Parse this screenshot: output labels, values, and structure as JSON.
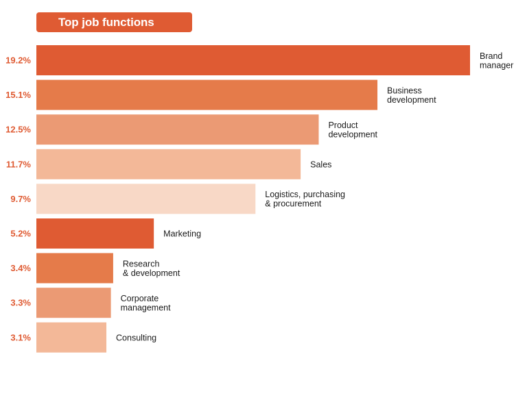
{
  "chart_data": {
    "type": "bar",
    "orientation": "horizontal",
    "title": "Top job functions",
    "categories": [
      "Brand manager",
      "Business development",
      "Product development",
      "Sales",
      "Logistics, purchasing & procurement",
      "Marketing",
      "Research & development",
      "Corporate management",
      "Consulting"
    ],
    "category_label_lines": [
      [
        "Brand",
        "manager"
      ],
      [
        "Business",
        "development"
      ],
      [
        "Product",
        "development"
      ],
      [
        "Sales"
      ],
      [
        "Logistics, purchasing",
        "& procurement"
      ],
      [
        "Marketing"
      ],
      [
        "Research",
        "& development"
      ],
      [
        "Corporate",
        "management"
      ],
      [
        "Consulting"
      ]
    ],
    "values": [
      19.2,
      15.1,
      12.5,
      11.7,
      9.7,
      5.2,
      3.4,
      3.3,
      3.1
    ],
    "value_labels": [
      "19.2%",
      "15.1%",
      "12.5%",
      "11.7%",
      "9.7%",
      "5.2%",
      "3.4%",
      "3.3%",
      "3.1%"
    ],
    "bar_colors": [
      "#df5b33",
      "#e57b4a",
      "#eb9a74",
      "#f3b898",
      "#f8d8c6",
      "#df5b33",
      "#e57b4a",
      "#eb9a74",
      "#f3b898"
    ],
    "xlim": [
      0,
      19.2
    ],
    "xlabel": "",
    "ylabel": "",
    "grid": false,
    "legend": "none"
  },
  "colors": {
    "accent": "#df5b33",
    "title_text": "#ffffff",
    "value_label": "#df5b33",
    "category_label": "#1a1a1a"
  }
}
